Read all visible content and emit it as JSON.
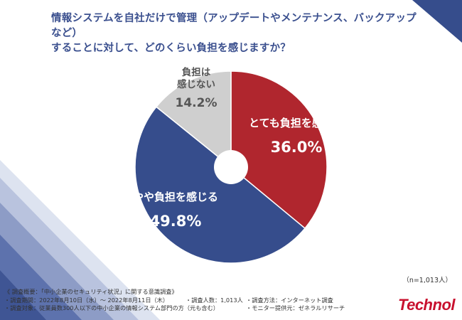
{
  "title_line1": "情報システムを自社だけで管理（アップデートやメンテナンス、バックアップなど）",
  "title_line2": "することに対して、どのくらい負担を感じますか？",
  "sample_note": "（n=1,013人）",
  "colors": {
    "strong": "#b0262e",
    "somewhat": "#364d8c",
    "none": "#cfcfcf",
    "accent": "#3a4f8e"
  },
  "chart_data": {
    "type": "pie",
    "title": "",
    "donut_hole": true,
    "slices": [
      {
        "label": "とても負担を感じる",
        "value": 36.0,
        "value_text": "36.0%",
        "color": "#b0262e"
      },
      {
        "label": "やや負担を感じる",
        "value": 49.8,
        "value_text": "49.8%",
        "color": "#364d8c"
      },
      {
        "label": "負担は感じない",
        "label_lines": [
          "負担は",
          "感じない"
        ],
        "value": 14.2,
        "value_text": "14.2%",
        "color": "#cfcfcf"
      }
    ]
  },
  "survey": {
    "heading": "《 調査概要：「中小企業のセキュリティ状況」に関する意識調査》",
    "period": "・調査期間：2022年8月10日（水）～ 2022年8月11日（木）",
    "respondents": "・調査人数：1,013人",
    "method": "・調査方法：インターネット調査",
    "target": "・調査対象：従業員数300人以下の中小企業の情報システム部門の方（元も含む）",
    "provider": "・モニター提供元：ゼネラルリサーチ"
  },
  "logo_text": "Technol"
}
